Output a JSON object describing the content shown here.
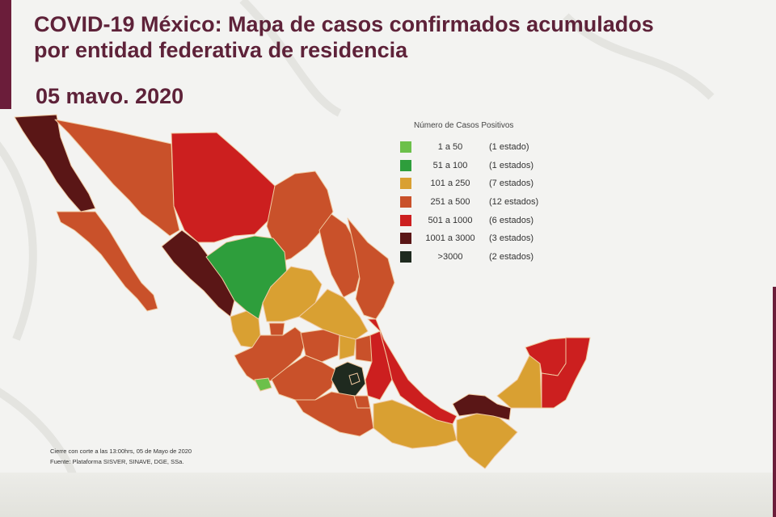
{
  "header": {
    "title_line1": "COVID-19 México: Mapa de casos confirmados acumulados",
    "title_line2": "por entidad federativa de residencia",
    "date": "05 mavo. 2020"
  },
  "legend": {
    "title": "Número de Casos Positivos",
    "items": [
      {
        "range": "1 a 50",
        "count": "(1 estado)",
        "color": "#6cc04a"
      },
      {
        "range": "51 a 100",
        "count": "(1 estados)",
        "color": "#2e9e3c"
      },
      {
        "range": "101 a 250",
        "count": "(7 estados)",
        "color": "#d9a032"
      },
      {
        "range": "251 a 500",
        "count": "(12 estados)",
        "color": "#c9512a"
      },
      {
        "range": "501 a 1000",
        "count": "(6 estados)",
        "color": "#cc1f1f"
      },
      {
        "range": "1001 a 3000",
        "count": "(3 estados)",
        "color": "#5a1616"
      },
      {
        ">3000": null,
        "range": ">3000",
        "count": "(2 estados)",
        "color": "#1f2a1f"
      }
    ]
  },
  "footnote": {
    "line1": "Cierre con corte a las 13:00hrs, 05 de Mayo de 2020",
    "line2": "Fuente: Plataforma SISVER, SINAVE, DGE, SSa."
  },
  "colors": {
    "brand": "#6b1d3a",
    "c_1_50": "#6cc04a",
    "c_51_100": "#2e9e3c",
    "c_101_250": "#d9a032",
    "c_251_500": "#c9512a",
    "c_501_1000": "#cc1f1f",
    "c_1001_3000": "#5a1616",
    "c_gt3000": "#1f2a1f"
  }
}
